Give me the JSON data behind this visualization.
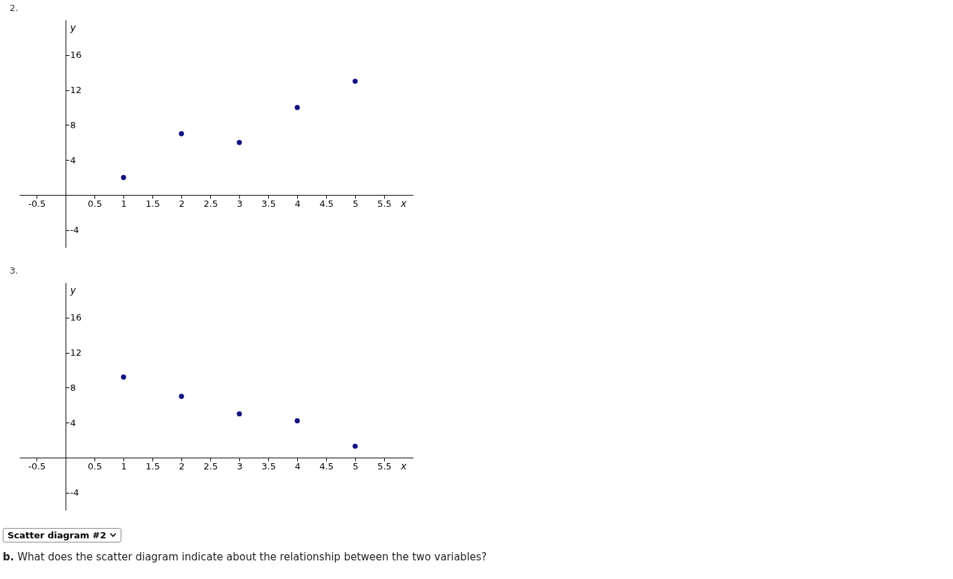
{
  "chart_data": [
    {
      "type": "scatter",
      "title": "2.",
      "xlabel": "x",
      "ylabel": "y",
      "x": [
        1,
        2,
        3,
        4,
        5
      ],
      "series": [
        {
          "color": "#10107f",
          "values": [
            2,
            7,
            6,
            10,
            13
          ]
        }
      ],
      "xlim": [
        -0.8,
        6
      ],
      "ylim": [
        -6,
        20
      ],
      "xticks": [
        -0.5,
        0.5,
        1,
        1.5,
        2,
        2.5,
        3,
        3.5,
        4,
        4.5,
        5,
        5.5
      ],
      "yticks": [
        -4,
        4,
        8,
        12,
        16
      ],
      "grid": false,
      "marker": "circle",
      "legend": false
    },
    {
      "type": "scatter",
      "title": "3.",
      "xlabel": "x",
      "ylabel": "y",
      "x": [
        1,
        2,
        3,
        4,
        5
      ],
      "series": [
        {
          "color": "#10107f",
          "values": [
            9.2,
            7,
            5,
            4.2,
            1.3
          ]
        }
      ],
      "xlim": [
        -0.8,
        6
      ],
      "ylim": [
        -6,
        20
      ],
      "xticks": [
        -0.5,
        0.5,
        1,
        1.5,
        2,
        2.5,
        3,
        3.5,
        4,
        4.5,
        5,
        5.5
      ],
      "yticks": [
        -4,
        4,
        8,
        12,
        16
      ],
      "grid": false,
      "marker": "circle",
      "legend": false,
      "annotations": [
        "Scatter diagram #2",
        "b. What does the scatter diagram indicate about the relationship between the two variables?"
      ]
    }
  ]
}
